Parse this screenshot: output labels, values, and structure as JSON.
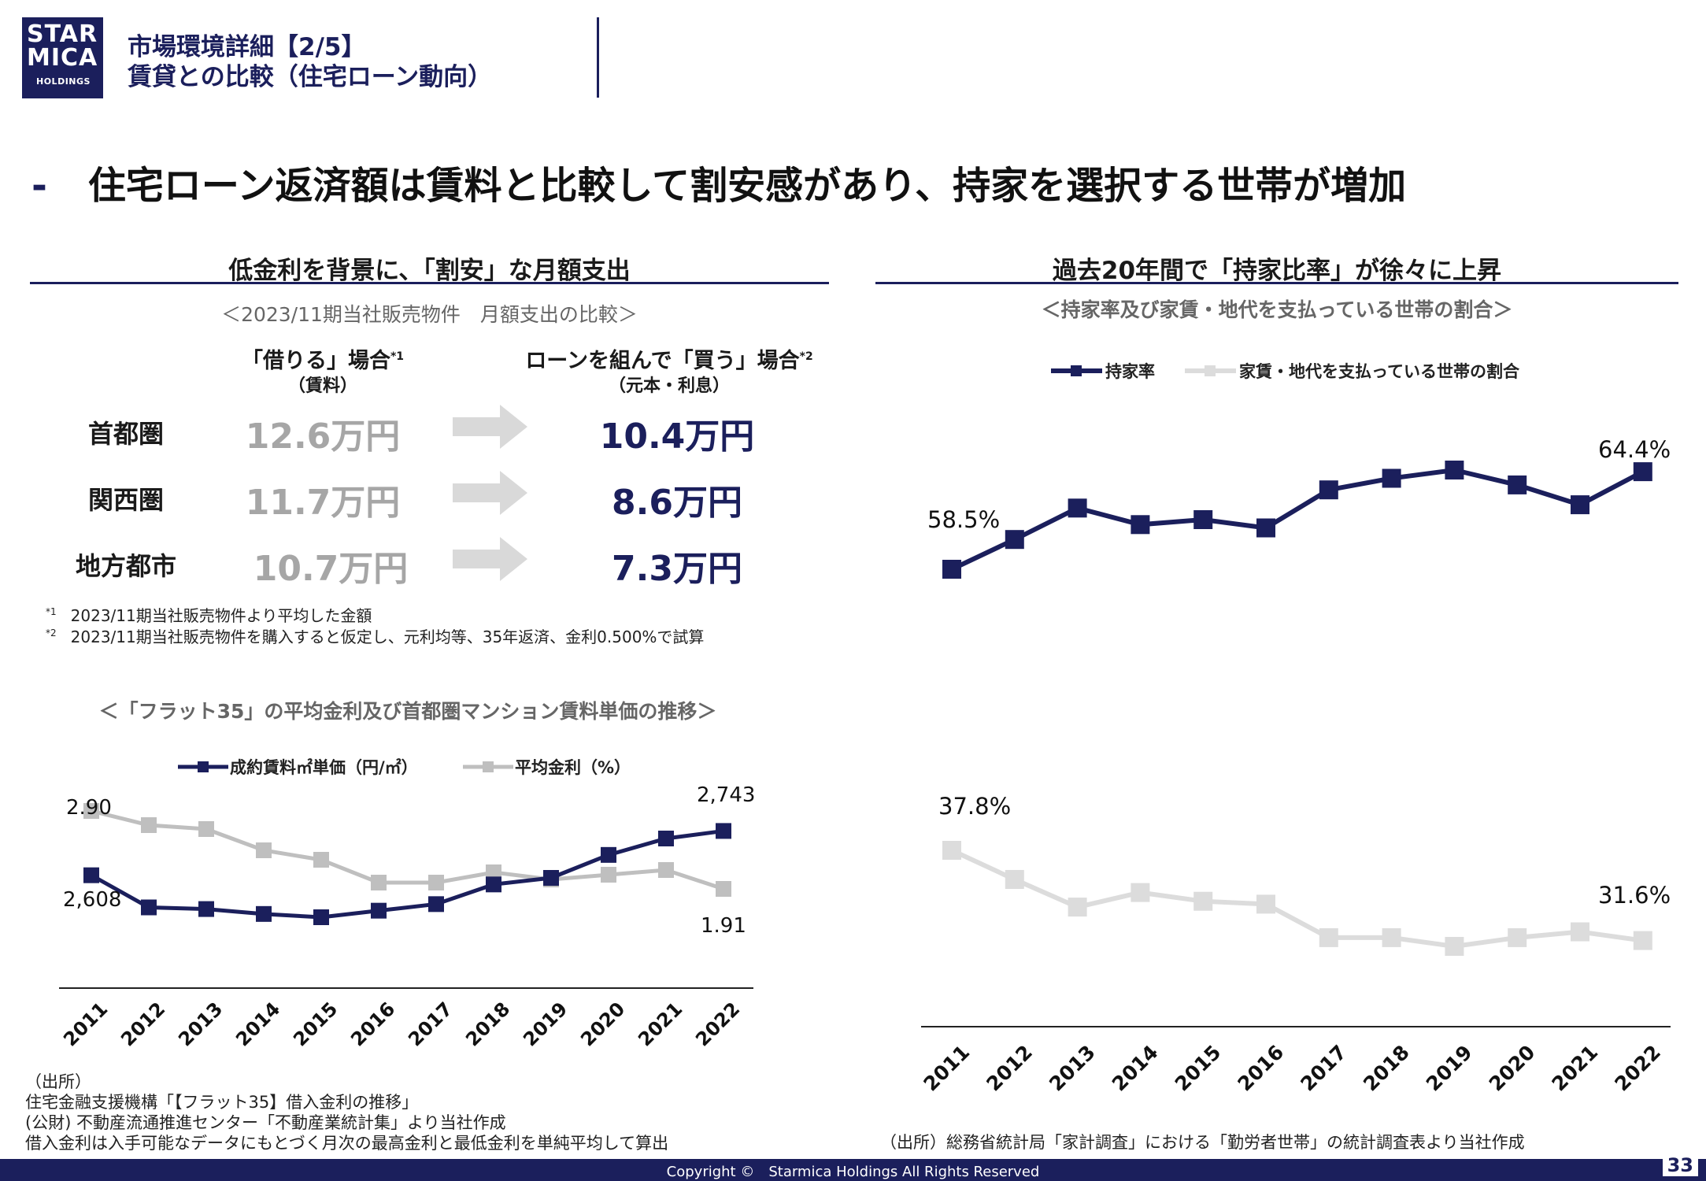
{
  "logo": {
    "line1": "STAR",
    "line2": "MICA",
    "line3": "HOLDINGS"
  },
  "header": {
    "title_line1": "市場環境詳細【2/5】",
    "title_line2": "賃貸との比較（住宅ローン動向）"
  },
  "headline": {
    "dash": "-",
    "text": "住宅ローン返済額は賃料と比較して割安感があり、持家を選択する世帯が増加"
  },
  "left_section": {
    "title": "低金利を背景に、「割安」な月額支出",
    "subtitle": "＜2023/11期当社販売物件　月額支出の比較＞",
    "rent_header": "「借りる」場合",
    "rent_header_sup": "*1",
    "rent_sub": "（賃料）",
    "buy_header": "ローンを組んで「買う」場合",
    "buy_header_sup": "*2",
    "buy_sub": "（元本・利息）",
    "rows": [
      {
        "region": "首都圏",
        "rent": "12.6万円",
        "buy": "10.4万円"
      },
      {
        "region": "関西圏",
        "rent": "11.7万円",
        "buy": "8.6万円"
      },
      {
        "region": "地方都市",
        "rent": "10.7万円",
        "buy": "7.3万円"
      }
    ],
    "notes": [
      {
        "mark": "*1",
        "text": "2023/11期当社販売物件より平均した金額"
      },
      {
        "mark": "*2",
        "text": "2023/11期当社販売物件を購入すると仮定し、元利均等、35年返済、金利0.500%で試算"
      }
    ]
  },
  "chart_left_title": "＜「フラット35」の平均金利及び首都圏マンション賃料単価の推移＞",
  "chart_right_title": "過去20年間で「持家比率」が徐々に上昇",
  "chart_right_subtitle": "＜持家率及び家賃・地代を支払っている世帯の割合＞",
  "chart_data": [
    {
      "type": "line",
      "title": "＜「フラット35」の平均金利及び首都圏マンション賃料単価の推移＞",
      "categories": [
        "2011",
        "2012",
        "2013",
        "2014",
        "2015",
        "2016",
        "2017",
        "2018",
        "2019",
        "2020",
        "2021",
        "2022"
      ],
      "series": [
        {
          "name": "成約賃料㎡単価（円/㎡）",
          "color": "#1b1f5c",
          "axis": "left",
          "values": [
            2608,
            2510,
            2505,
            2490,
            2480,
            2500,
            2520,
            2580,
            2600,
            2670,
            2720,
            2743
          ],
          "labels": {
            "first": "2,608",
            "last": "2,743"
          }
        },
        {
          "name": "平均金利（%）",
          "color": "#bfbfbf",
          "axis": "right",
          "values": [
            2.9,
            2.72,
            2.67,
            2.4,
            2.28,
            1.99,
            1.99,
            2.12,
            2.03,
            2.09,
            2.15,
            1.91
          ],
          "labels": {
            "first": "2.90",
            "last": "1.91"
          }
        }
      ],
      "ylim_left": [
        2300,
        2900
      ],
      "ylim_right": [
        0.8,
        3.3
      ]
    },
    {
      "type": "line",
      "title": "過去20年間で「持家比率」が徐々に上昇",
      "categories": [
        "2011",
        "2012",
        "2013",
        "2014",
        "2015",
        "2016",
        "2017",
        "2018",
        "2019",
        "2020",
        "2021",
        "2022"
      ],
      "series": [
        {
          "name": "持家率",
          "color": "#1b1f5c",
          "values": [
            58.5,
            60.3,
            62.2,
            61.2,
            61.5,
            61.0,
            63.3,
            64.0,
            64.5,
            63.6,
            62.4,
            64.4
          ],
          "labels": {
            "first": "58.5%",
            "last": "64.4%"
          }
        },
        {
          "name": "家賃・地代を支払っている世帯の割合",
          "color": "#dcdcdc",
          "values": [
            37.8,
            35.8,
            33.9,
            34.9,
            34.3,
            34.1,
            31.8,
            31.8,
            31.2,
            31.8,
            32.2,
            31.6
          ],
          "labels": {
            "first": "37.8%",
            "last": "31.6%"
          }
        }
      ]
    }
  ],
  "sources_left": [
    "（出所）",
    "住宅金融支援機構「【フラット35】借入金利の推移」",
    "(公財) 不動産流通推進センター「不動産業統計集」より当社作成",
    "借入金利は入手可能なデータにもとづく月次の最高金利と最低金利を単純平均して算出"
  ],
  "source_right": "（出所）総務省統計局「家計調査」における「勤労者世帯」の統計調査表より当社作成",
  "footer": {
    "copyright": "Copyright ©　Starmica Holdings All Rights Reserved",
    "page": "33"
  },
  "colors": {
    "navy": "#1b1f5c",
    "gray": "#a6a6a6",
    "light_gray": "#dcdcdc"
  }
}
